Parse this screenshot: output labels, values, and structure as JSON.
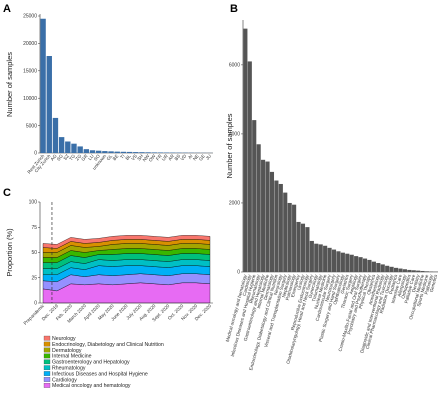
{
  "panels": {
    "a": "A",
    "b": "B",
    "c": "C"
  },
  "chart_data": [
    {
      "id": "A",
      "type": "bar",
      "ylabel": "Number of samples",
      "xlabel": "",
      "ylim": [
        0,
        25000
      ],
      "yticks": [
        0,
        5000,
        10000,
        15000,
        20000,
        25000
      ],
      "bar_color": "#3a6fa8",
      "categories": [
        "Rest Zurich",
        "City Zurich",
        "AG",
        "SG",
        "SZ",
        "TG",
        "ZG",
        "GR",
        "LU",
        "SO",
        "unknown",
        "GL",
        "BE",
        "TI",
        "BL",
        "VS",
        "SH",
        "NW",
        "OW",
        "FR",
        "UR",
        "AR",
        "BS",
        "VD",
        "AI",
        "NE",
        "GE",
        "JU"
      ],
      "values": [
        24500,
        17700,
        6400,
        2900,
        2100,
        1700,
        1200,
        700,
        500,
        420,
        350,
        300,
        250,
        220,
        200,
        170,
        150,
        130,
        110,
        100,
        90,
        80,
        70,
        60,
        50,
        40,
        30,
        20
      ]
    },
    {
      "id": "B",
      "type": "bar",
      "ylabel": "Number of samples",
      "xlabel": "",
      "ylim": [
        0,
        7300
      ],
      "yticks": [
        0,
        2000,
        4000,
        6000
      ],
      "bar_color": "#555555",
      "categories": [
        "Medical oncology and hematology",
        "Cardiology",
        "Infectious Diseases and Hospital Hygiene",
        "Rheumatology",
        "Gastroenterology and Hepatology",
        "Internal Medicine",
        "Dermatology",
        "Endocrinology, Diabetology and Clinical Nutrition",
        "Neurology",
        "Visceral and Transplantation Surgery",
        "Nephrology",
        "Pulmonology",
        "Emergency",
        "Urology",
        "Reproductive Endocrinology",
        "Otorhinolaryngology, Head and Neck Surgery",
        "Gynecology",
        "Traumatology",
        "Nuclear Medicine",
        "Cardiovascular Surgery",
        "Neurosurgery",
        "Plastic Surgery and Hand Surgery",
        "Ophthalmology",
        "Geriatrics",
        "Thoracic Surgery",
        "Angiology",
        "Cranio-Maxillo-Facial and Oral Surgery",
        "Psychiatry and Psychotherapy",
        "Physical Therapy",
        "Obstetrics",
        "Anesthesiology",
        "Diagnostic and Interventional Radiology",
        "Clinical Pharmacology and Toxicology",
        "Radiation Oncology",
        "Pediatrics",
        "Intensive Care",
        "Allergology",
        "Orthopedics",
        "Palliative Care",
        "Dentistry",
        "Occupational Medicine",
        "Sports Medicine",
        "Pathology",
        "Genetics"
      ],
      "values": [
        7050,
        6100,
        4400,
        3700,
        3250,
        3200,
        2900,
        2650,
        2550,
        2300,
        2000,
        1950,
        1450,
        1400,
        1300,
        900,
        820,
        800,
        760,
        700,
        650,
        600,
        560,
        530,
        500,
        460,
        430,
        390,
        350,
        300,
        260,
        220,
        180,
        150,
        120,
        100,
        80,
        60,
        50,
        40,
        30,
        20,
        15,
        10
      ]
    },
    {
      "id": "C",
      "type": "area",
      "ylabel": "Proportion (%)",
      "xlabel": "",
      "ylim": [
        0,
        100
      ],
      "yticks": [
        0,
        25,
        50,
        75,
        100
      ],
      "categories": [
        "Prepandemic",
        "Dec. 2019",
        "Feb. 2020",
        "March 2020",
        "April 2020",
        "May 2020",
        "June 2020",
        "July 2020",
        "Aug. 2020",
        "Sept. 2020",
        "Oct. 2020",
        "Nov. 2020",
        "Dec. 2020"
      ],
      "pandemic_marker_index": 1,
      "legend": [
        "Neurology",
        "Endocrinology, Diabetology and Clinical Nutrition",
        "Dermatology",
        "Internal Medicine",
        "Gastroenterology and Hepatology",
        "Rheumatology",
        "Infectious Diseases and Hospital Hygiene",
        "Cardiology",
        "Medical oncology and hematology"
      ],
      "legend_colors": [
        "#f8766d",
        "#d89000",
        "#a3a500",
        "#39b600",
        "#00bf7d",
        "#00bfc4",
        "#00b0f6",
        "#9590ff",
        "#e76bf3"
      ],
      "series": [
        {
          "name": "Medical oncology and hematology",
          "values": [
            14,
            12,
            19,
            18,
            19,
            18,
            19,
            20,
            19,
            18,
            20,
            20,
            19
          ]
        },
        {
          "name": "Cardiology",
          "values": [
            8,
            9,
            9,
            8,
            9,
            9,
            9,
            9,
            9,
            9,
            9,
            9,
            9
          ]
        },
        {
          "name": "Infectious Diseases and Hospital Hygiene",
          "values": [
            6,
            7,
            7,
            7,
            9,
            9,
            9,
            8,
            8,
            8,
            8,
            8,
            8
          ]
        },
        {
          "name": "Rheumatology",
          "values": [
            6,
            6,
            6,
            6,
            6,
            6,
            6,
            6,
            6,
            6,
            6,
            6,
            6
          ]
        },
        {
          "name": "Gastroenterology and Hepatology",
          "values": [
            6,
            6,
            6,
            6,
            5,
            6,
            6,
            6,
            6,
            6,
            6,
            6,
            6
          ]
        },
        {
          "name": "Internal Medicine",
          "values": [
            5,
            5,
            5,
            5,
            4,
            5,
            5,
            5,
            5,
            5,
            5,
            5,
            5
          ]
        },
        {
          "name": "Dermatology",
          "values": [
            5,
            5,
            5,
            5,
            4,
            5,
            5,
            5,
            5,
            5,
            5,
            5,
            5
          ]
        },
        {
          "name": "Endocrinology, Diabetology and Clinical Nutrition",
          "values": [
            5,
            4,
            4,
            4,
            4,
            4,
            4,
            4,
            4,
            4,
            4,
            4,
            4
          ]
        },
        {
          "name": "Neurology",
          "values": [
            4,
            4,
            4,
            4,
            4,
            4,
            4,
            4,
            4,
            4,
            4,
            4,
            4
          ]
        }
      ]
    }
  ]
}
